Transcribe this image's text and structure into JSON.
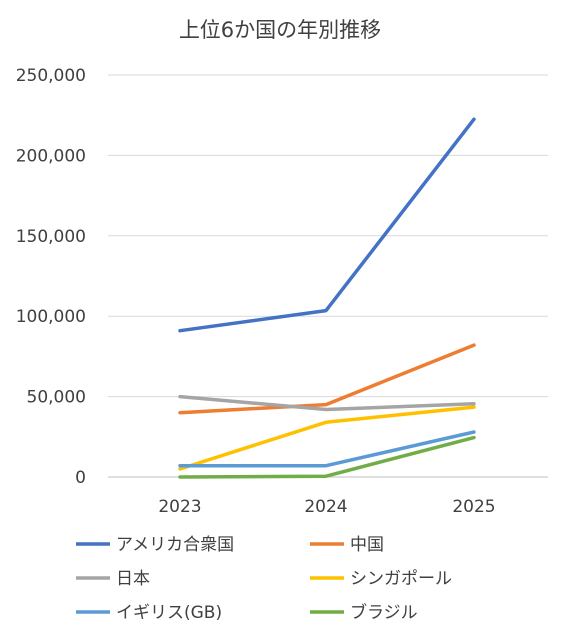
{
  "chart_data": {
    "type": "line",
    "title": "上位6か国の年別推移",
    "xlabel": "",
    "ylabel": "",
    "categories": [
      "2023",
      "2024",
      "2025"
    ],
    "ylim": [
      0,
      250000
    ],
    "yticks": [
      0,
      50000,
      100000,
      150000,
      200000,
      250000
    ],
    "ytick_labels": [
      "0",
      "50,000",
      "100,000",
      "150,000",
      "200,000",
      "250,000"
    ],
    "grid": true,
    "legend_position": "bottom",
    "series": [
      {
        "name": "アメリカ合衆国",
        "color": "#4472C4",
        "values": [
          91000,
          103500,
          222500
        ]
      },
      {
        "name": "中国",
        "color": "#ED7D31",
        "values": [
          40000,
          45000,
          82000
        ]
      },
      {
        "name": "日本",
        "color": "#A5A5A5",
        "values": [
          50000,
          42000,
          45500
        ]
      },
      {
        "name": "シンガポール",
        "color": "#FFC000",
        "values": [
          5000,
          34000,
          43500
        ]
      },
      {
        "name": "イギリス(GB)",
        "color": "#5B9BD5",
        "values": [
          7000,
          7000,
          28000
        ]
      },
      {
        "name": "ブラジル",
        "color": "#70AD47",
        "values": [
          0,
          500,
          24500
        ]
      }
    ]
  }
}
